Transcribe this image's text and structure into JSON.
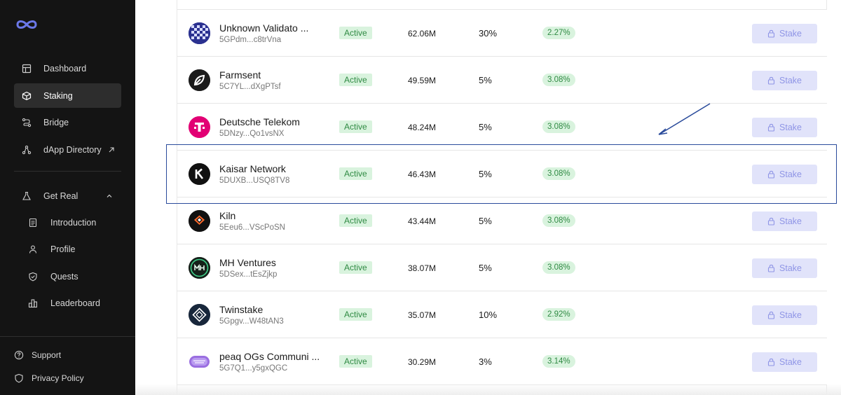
{
  "sidebar": {
    "nav": [
      {
        "label": "Dashboard",
        "icon": "dashboard-icon",
        "active": false
      },
      {
        "label": "Staking",
        "icon": "cube-icon",
        "active": true
      },
      {
        "label": "Bridge",
        "icon": "bridge-icon",
        "active": false
      },
      {
        "label": "dApp Directory",
        "icon": "dapp-icon",
        "active": false
      }
    ],
    "group": {
      "label": "Get Real",
      "icon": "flask-icon"
    },
    "sub_items": [
      {
        "label": "Introduction",
        "icon": "document-icon"
      },
      {
        "label": "Profile",
        "icon": "user-icon"
      },
      {
        "label": "Quests",
        "icon": "shield-check-icon"
      },
      {
        "label": "Leaderboard",
        "icon": "bar-chart-icon"
      }
    ],
    "footer": [
      {
        "label": "Support",
        "icon": "help-circle-icon"
      },
      {
        "label": "Privacy Policy",
        "icon": "shield-icon"
      }
    ]
  },
  "validators": [
    {
      "name": "Unknown Validato ...",
      "address": "5GPdm...c8trVna",
      "status": "Active",
      "stake": "62.06M",
      "commission": "30%",
      "apy": "2.27%",
      "action": "Stake",
      "logo": "pixel-logo"
    },
    {
      "name": "Farmsent",
      "address": "5C7YL...dXgPTsf",
      "status": "Active",
      "stake": "49.59M",
      "commission": "5%",
      "apy": "3.08%",
      "action": "Stake",
      "logo": "farmsent-logo"
    },
    {
      "name": "Deutsche Telekom",
      "address": "5DNzy...Qo1vsNX",
      "status": "Active",
      "stake": "48.24M",
      "commission": "5%",
      "apy": "3.08%",
      "action": "Stake",
      "logo": "telekom-logo"
    },
    {
      "name": "Kaisar Network",
      "address": "5DUXB...USQ8TV8",
      "status": "Active",
      "stake": "46.43M",
      "commission": "5%",
      "apy": "3.08%",
      "action": "Stake",
      "logo": "kaisar-logo"
    },
    {
      "name": "Kiln",
      "address": "5Eeu6...VScPoSN",
      "status": "Active",
      "stake": "43.44M",
      "commission": "5%",
      "apy": "3.08%",
      "action": "Stake",
      "logo": "kiln-logo"
    },
    {
      "name": "MH Ventures",
      "address": "5DSex...tEsZjkp",
      "status": "Active",
      "stake": "38.07M",
      "commission": "5%",
      "apy": "3.08%",
      "action": "Stake",
      "logo": "mh-ventures-logo"
    },
    {
      "name": "Twinstake",
      "address": "5Gpgv...W48tAN3",
      "status": "Active",
      "stake": "35.07M",
      "commission": "10%",
      "apy": "2.92%",
      "action": "Stake",
      "logo": "twinstake-logo"
    },
    {
      "name": "peaq OGs Communi ...",
      "address": "5G7Q1...y5gxQGC",
      "status": "Active",
      "stake": "30.29M",
      "commission": "3%",
      "apy": "3.14%",
      "action": "Stake",
      "logo": "peaq-logo"
    }
  ],
  "colors": {
    "sidebar_bg": "#141414",
    "active_status_bg": "#d9f3de",
    "active_status_text": "#2f8a43",
    "stake_button_bg": "#e1e3fa",
    "stake_button_text": "#8f95e6",
    "highlight_border": "#2a4b9b"
  }
}
